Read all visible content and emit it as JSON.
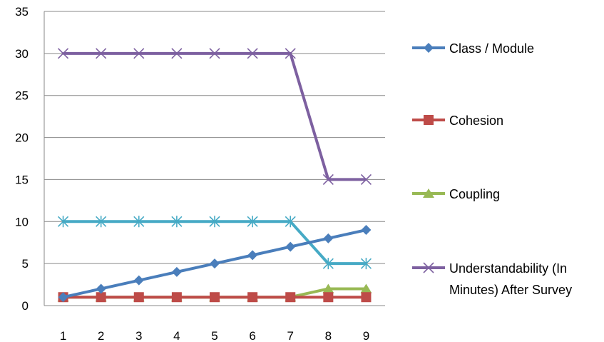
{
  "chart_data": {
    "type": "line",
    "x": [
      1,
      2,
      3,
      4,
      5,
      6,
      7,
      8,
      9
    ],
    "ylim": [
      0,
      35
    ],
    "yticks": [
      0,
      5,
      10,
      15,
      20,
      25,
      30,
      35
    ],
    "grid": true,
    "legend_position": "right",
    "series": [
      {
        "name": "Class / Module",
        "color": "#4a7ebb",
        "marker": "diamond",
        "legend": true,
        "values": [
          1,
          2,
          3,
          4,
          5,
          6,
          7,
          8,
          9
        ]
      },
      {
        "name": "Cohesion",
        "color": "#be4b48",
        "marker": "square",
        "legend": true,
        "values": [
          1,
          1,
          1,
          1,
          1,
          1,
          1,
          1,
          1
        ]
      },
      {
        "name": "Coupling",
        "color": "#98b954",
        "marker": "triangle",
        "legend": true,
        "values": [
          1,
          1,
          1,
          1,
          1,
          1,
          1,
          2,
          2
        ]
      },
      {
        "name": "Understandability (In Minutes) After Survey",
        "legend_lines": [
          "Understandability (In",
          "Minutes) After Survey"
        ],
        "color": "#7d60a0",
        "marker": "x",
        "legend": true,
        "values": [
          30,
          30,
          30,
          30,
          30,
          30,
          30,
          15,
          15
        ]
      },
      {
        "color": "#46aac5",
        "marker": "star",
        "legend": false,
        "values": [
          10,
          10,
          10,
          10,
          10,
          10,
          10,
          5,
          5
        ]
      }
    ]
  }
}
